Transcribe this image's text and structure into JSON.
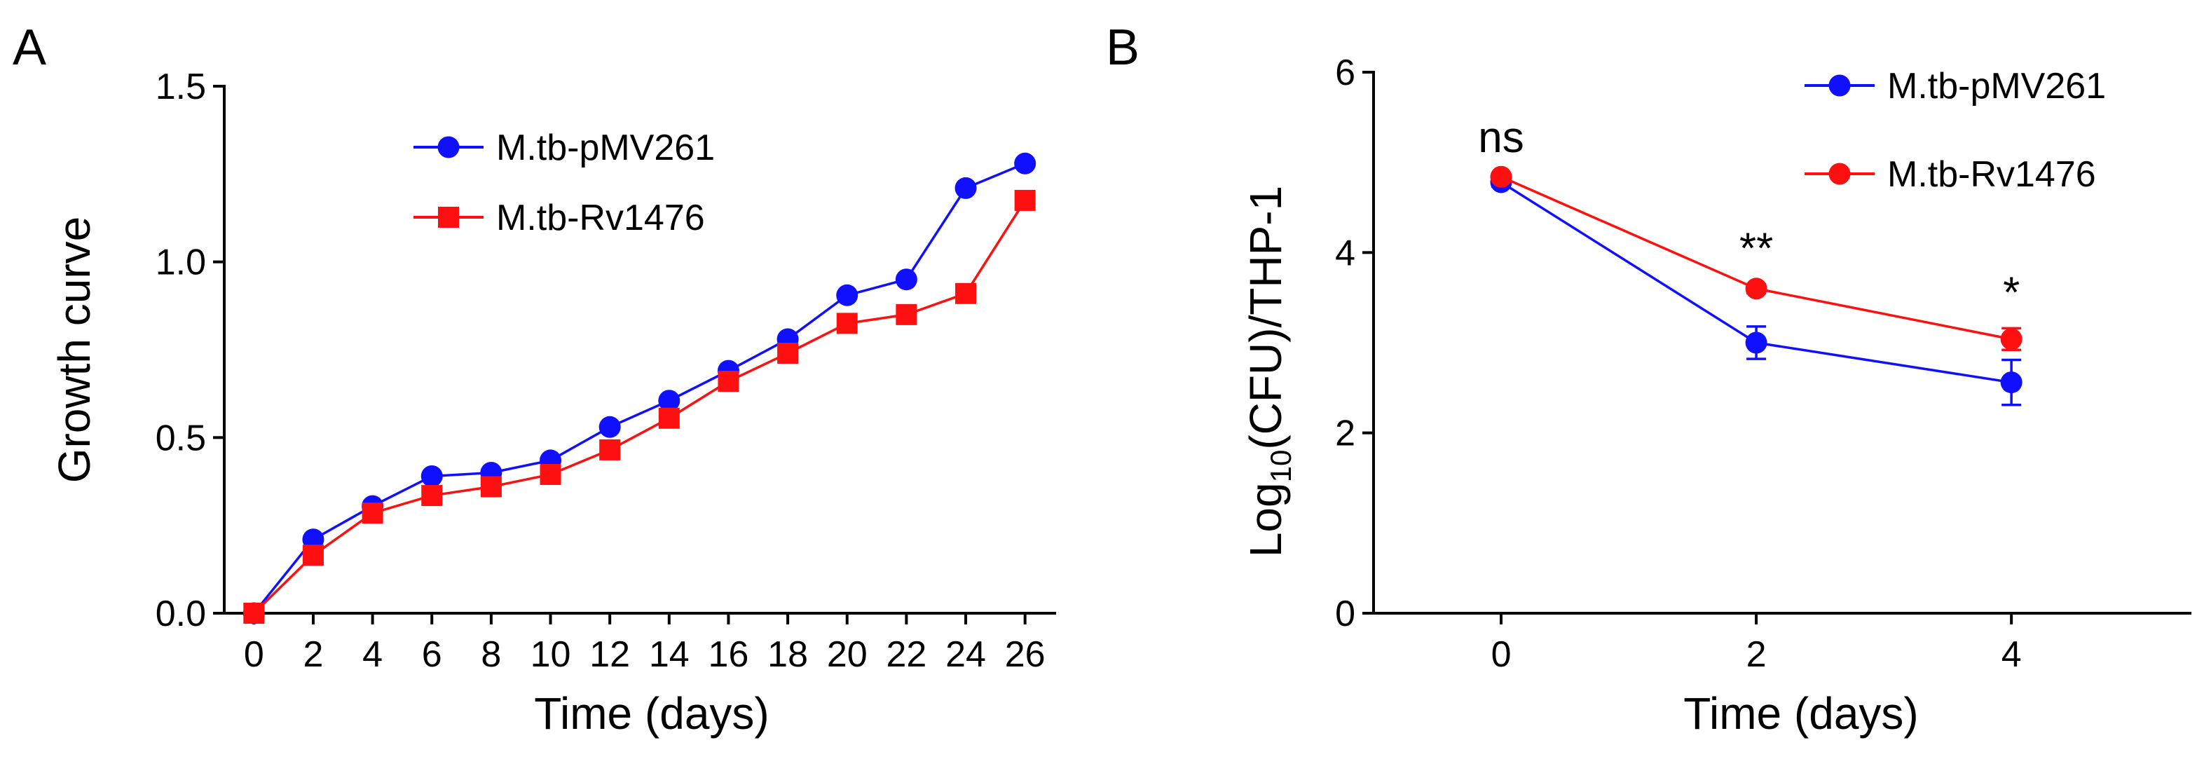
{
  "chart_data": [
    {
      "panel": "A",
      "type": "line",
      "xlabel": "Time (days)",
      "ylabel": "Growth curve",
      "xlim": [
        -1,
        27
      ],
      "ylim": [
        0,
        1.5
      ],
      "xticks": [
        0,
        2,
        4,
        6,
        8,
        10,
        12,
        14,
        16,
        18,
        20,
        22,
        24,
        26
      ],
      "xtick_labels": [
        "0",
        "2",
        "4",
        "6",
        "8",
        "10",
        "12",
        "14",
        "16",
        "18",
        "20",
        "22",
        "24",
        "26"
      ],
      "yticks": [
        0,
        0.5,
        1.0,
        1.5
      ],
      "ytick_labels": [
        "0.0",
        "0.5",
        "1.0",
        "1.5"
      ],
      "legend_position": "top-left",
      "x": [
        0,
        2,
        4,
        6,
        8,
        10,
        12,
        14,
        16,
        18,
        20,
        22,
        24,
        26
      ],
      "series": [
        {
          "name": "M.tb-pMV261",
          "color": "#1010ff",
          "marker": "circle",
          "values": [
            0.0,
            0.21,
            0.305,
            0.39,
            0.4,
            0.435,
            0.53,
            0.605,
            0.69,
            0.78,
            0.905,
            0.95,
            1.21,
            1.28
          ]
        },
        {
          "name": "M.tb-Rv1476",
          "color": "#ff1010",
          "marker": "square",
          "values": [
            0.0,
            0.165,
            0.285,
            0.335,
            0.36,
            0.395,
            0.465,
            0.555,
            0.66,
            0.74,
            0.825,
            0.85,
            0.91,
            1.175
          ]
        }
      ]
    },
    {
      "panel": "B",
      "type": "line",
      "xlabel": "Time (days)",
      "ylabel": "Log10(CFU)/THP-1",
      "ylabel_parts": {
        "main": "Log",
        "sub": "10",
        "rest": "(CFU)/THP-1"
      },
      "xlim": [
        -1,
        5.4
      ],
      "ylim": [
        0,
        6
      ],
      "xticks": [
        0,
        2,
        4
      ],
      "xtick_labels": [
        "0",
        "2",
        "4"
      ],
      "yticks": [
        0,
        2,
        4,
        6
      ],
      "ytick_labels": [
        "0",
        "2",
        "4",
        "6"
      ],
      "legend_position": "top-right",
      "x": [
        0,
        2,
        4
      ],
      "series": [
        {
          "name": "M.tb-pMV261",
          "color": "#1010ff",
          "marker": "circle",
          "values": [
            4.78,
            3.0,
            2.56
          ],
          "errors": [
            0.05,
            0.18,
            0.25
          ]
        },
        {
          "name": "M.tb-Rv1476",
          "color": "#ff1010",
          "marker": "circle",
          "values": [
            4.84,
            3.6,
            3.04
          ],
          "errors": [
            0.04,
            0.05,
            0.12
          ]
        }
      ],
      "annotations": [
        {
          "x": 0,
          "text": "ns"
        },
        {
          "x": 2,
          "text": "**"
        },
        {
          "x": 4,
          "text": "*"
        }
      ]
    }
  ]
}
